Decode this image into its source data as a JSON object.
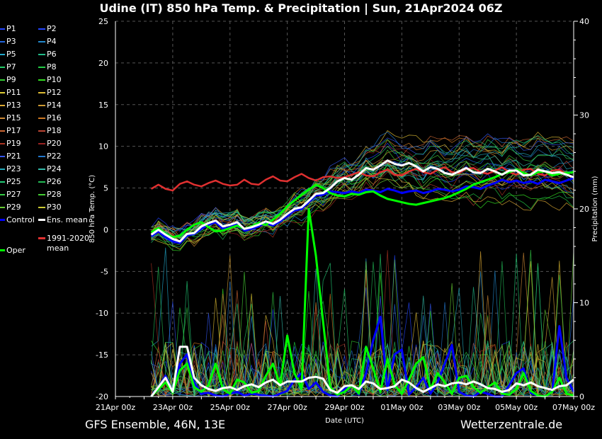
{
  "title": "Udine  (IT)  850 hPa Temp. & Precipitation | Sun, 21Apr2024 06Z",
  "footer_left": "GFS Ensemble, 46N, 13E",
  "footer_right": "Wetterzentrale.de",
  "colors": {
    "background": "#000000",
    "control": "#0000ff",
    "ens_mean": "#ffffff",
    "clim_mean": "#e03030",
    "oper": "#00ff00",
    "grid": "#555555"
  },
  "legend": {
    "members": [
      {
        "label": "P1",
        "color": "#2244ff"
      },
      {
        "label": "P2",
        "color": "#2244ff"
      },
      {
        "label": "P3",
        "color": "#2266dd"
      },
      {
        "label": "P4",
        "color": "#2288cc"
      },
      {
        "label": "P5",
        "color": "#22aacc"
      },
      {
        "label": "P6",
        "color": "#22bb88"
      },
      {
        "label": "P7",
        "color": "#22cc66"
      },
      {
        "label": "P8",
        "color": "#22cc44"
      },
      {
        "label": "P9",
        "color": "#33cc33"
      },
      {
        "label": "P10",
        "color": "#33dd22"
      },
      {
        "label": "P11",
        "color": "#ddcc33"
      },
      {
        "label": "P12",
        "color": "#ddbb33"
      },
      {
        "label": "P13",
        "color": "#ddaa33"
      },
      {
        "label": "P14",
        "color": "#cc9933"
      },
      {
        "label": "P15",
        "color": "#cc8833"
      },
      {
        "label": "P16",
        "color": "#cc7722"
      },
      {
        "label": "P17",
        "color": "#cc6633"
      },
      {
        "label": "P18",
        "color": "#bb4433"
      },
      {
        "label": "P19",
        "color": "#aa3322"
      },
      {
        "label": "P20",
        "color": "#992222"
      },
      {
        "label": "P21",
        "color": "#3355ee"
      },
      {
        "label": "P22",
        "color": "#2277cc"
      },
      {
        "label": "P23",
        "color": "#22aabb"
      },
      {
        "label": "P24",
        "color": "#33bbaa"
      },
      {
        "label": "P25",
        "color": "#22cc77"
      },
      {
        "label": "P26",
        "color": "#22bb55"
      },
      {
        "label": "P27",
        "color": "#33cc44"
      },
      {
        "label": "P28",
        "color": "#44cc33"
      },
      {
        "label": "P29",
        "color": "#66cc33"
      },
      {
        "label": "P30",
        "color": "#cccc33"
      }
    ],
    "control_label": "Control",
    "ens_mean_label": "Ens. mean",
    "clim_label_1": "1991-2020",
    "clim_label_2": "mean",
    "oper_label": "Oper"
  },
  "chart_data": {
    "type": "line",
    "title": "Udine  (IT)  850 hPa Temp. & Precipitation | Sun, 21Apr2024 06Z",
    "xlabel": "Date (UTC)",
    "ylabel": "850 hPa Temp. (°C)",
    "y2label": "Precipitation (mm)",
    "ylim": [
      -20,
      25
    ],
    "y2lim": [
      0,
      40
    ],
    "yticks": [
      25,
      20,
      15,
      10,
      5,
      0,
      -5,
      -10,
      -15,
      -20
    ],
    "y2ticks": [
      40,
      30,
      20,
      10,
      0
    ],
    "xlim_days": [
      0,
      16
    ],
    "xticks": [
      {
        "day": 0,
        "label": "21Apr 00z"
      },
      {
        "day": 2,
        "label": "23Apr 00z"
      },
      {
        "day": 4,
        "label": "25Apr 00z"
      },
      {
        "day": 6,
        "label": "27Apr 00z"
      },
      {
        "day": 8,
        "label": "29Apr 00z"
      },
      {
        "day": 10,
        "label": "01May 00z"
      },
      {
        "day": 12,
        "label": "03May 00z"
      },
      {
        "day": 14,
        "label": "05May 00z"
      },
      {
        "day": 16,
        "label": "07May 00z"
      }
    ],
    "series": [
      {
        "name": "1991-2020 mean",
        "unit": "°C",
        "x": [
          1.25,
          1.5,
          1.75,
          2.0,
          2.25,
          2.5,
          2.75,
          3.0,
          3.25,
          3.5,
          3.75,
          4.0,
          4.25,
          4.5,
          4.75,
          5.0,
          5.25,
          5.5,
          5.75,
          6.0,
          6.25,
          6.5,
          6.75,
          7.0,
          7.25,
          7.5,
          7.75,
          8.0,
          8.25,
          8.5,
          8.75,
          9.0,
          9.25,
          9.5,
          9.75,
          10.0,
          10.25,
          10.5,
          10.75,
          11.0,
          11.25,
          11.5,
          11.75,
          12.0,
          12.25,
          12.5,
          12.75,
          13.0,
          13.25,
          13.5,
          13.75,
          14.0,
          14.25,
          14.5,
          14.75,
          15.0,
          15.25,
          15.5,
          15.75,
          16.0
        ],
        "values": [
          4.9,
          5.4,
          4.9,
          4.7,
          5.5,
          5.8,
          5.4,
          5.2,
          5.6,
          5.9,
          5.5,
          5.3,
          5.4,
          6.0,
          5.5,
          5.4,
          6.0,
          6.4,
          5.9,
          5.8,
          6.3,
          6.7,
          6.2,
          5.9,
          6.3,
          6.4,
          6.2,
          6.3,
          6.6,
          6.9,
          6.5,
          6.4,
          6.9,
          7.2,
          6.6,
          6.5,
          7.0,
          7.3,
          6.9,
          6.7,
          7.2,
          7.5,
          6.9,
          6.8,
          7.3,
          7.4,
          6.9,
          6.7,
          7.1,
          7.5,
          6.9,
          6.6,
          7.2,
          7.3,
          6.7,
          6.5,
          7.1,
          7.2,
          6.6,
          6.3
        ]
      },
      {
        "name": "Ens. mean",
        "unit": "°C",
        "x": [
          1.25,
          1.5,
          1.75,
          2.0,
          2.25,
          2.5,
          2.75,
          3.0,
          3.25,
          3.5,
          3.75,
          4.0,
          4.25,
          4.5,
          4.75,
          5.0,
          5.25,
          5.5,
          5.75,
          6.0,
          6.25,
          6.5,
          6.75,
          7.0,
          7.25,
          7.5,
          7.75,
          8.0,
          8.25,
          8.5,
          8.75,
          9.0,
          9.25,
          9.5,
          9.75,
          10.0,
          10.25,
          10.5,
          10.75,
          11.0,
          11.25,
          11.5,
          11.75,
          12.0,
          12.25,
          12.5,
          12.75,
          13.0,
          13.25,
          13.5,
          13.75,
          14.0,
          14.25,
          14.5,
          14.75,
          15.0,
          15.25,
          15.5,
          15.75,
          16.0
        ],
        "values": [
          -0.6,
          0.0,
          -0.6,
          -1.1,
          -1.4,
          -0.5,
          -0.4,
          0.4,
          0.8,
          1.1,
          0.4,
          0.6,
          0.9,
          0.1,
          0.3,
          0.6,
          1.0,
          0.7,
          1.2,
          1.9,
          2.5,
          2.7,
          3.5,
          4.3,
          4.4,
          5.0,
          5.8,
          6.2,
          6.0,
          6.6,
          7.4,
          7.2,
          7.7,
          8.3,
          7.9,
          7.7,
          8.0,
          7.6,
          7.0,
          7.5,
          7.3,
          6.8,
          6.6,
          7.0,
          7.4,
          6.9,
          6.8,
          7.3,
          7.0,
          6.6,
          7.1,
          7.1,
          6.5,
          6.6,
          7.2,
          7.0,
          6.8,
          6.9,
          6.6,
          6.3
        ]
      },
      {
        "name": "Control",
        "unit": "°C",
        "x": [
          1.25,
          1.5,
          1.75,
          2.0,
          2.25,
          2.5,
          2.75,
          3.0,
          3.25,
          3.5,
          3.75,
          4.0,
          4.25,
          4.5,
          4.75,
          5.0,
          5.25,
          5.5,
          5.75,
          6.0,
          6.25,
          6.5,
          6.75,
          7.0,
          7.25,
          7.5,
          7.75,
          8.0,
          8.25,
          8.5,
          8.75,
          9.0,
          9.25,
          9.5,
          9.75,
          10.0,
          10.25,
          10.5,
          10.75,
          11.0,
          11.25,
          11.5,
          11.75,
          12.0,
          12.25,
          12.5,
          12.75,
          13.0,
          13.25,
          13.5,
          13.75,
          14.0,
          14.25,
          14.5,
          14.75,
          15.0,
          15.25,
          15.5,
          15.75,
          16.0
        ],
        "values": [
          -0.8,
          -0.2,
          -0.9,
          -1.4,
          -1.6,
          -0.7,
          -0.5,
          0.1,
          0.6,
          0.9,
          0.1,
          0.3,
          0.7,
          -0.1,
          0.1,
          0.4,
          0.8,
          0.5,
          1.0,
          1.7,
          2.3,
          2.5,
          3.3,
          4.1,
          4.2,
          4.6,
          4.5,
          4.4,
          4.6,
          4.4,
          4.8,
          4.7,
          4.5,
          4.9,
          4.7,
          4.4,
          4.6,
          4.7,
          4.4,
          4.6,
          4.9,
          4.8,
          4.6,
          4.8,
          5.2,
          5.1,
          4.9,
          5.3,
          5.6,
          6.0,
          5.7,
          5.9,
          5.6,
          5.8,
          5.5,
          6.0,
          5.8,
          5.6,
          5.9,
          6.2
        ]
      },
      {
        "name": "Oper",
        "unit": "°C",
        "x": [
          1.25,
          1.5,
          1.75,
          2.0,
          2.25,
          2.5,
          2.75,
          3.0,
          3.25,
          3.5,
          3.75,
          4.0,
          4.25,
          4.5,
          4.75,
          5.0,
          5.25,
          5.5,
          5.75,
          6.0,
          6.25,
          6.5,
          6.75,
          7.0,
          7.25,
          7.5,
          7.75,
          8.0,
          8.25,
          8.5,
          8.75,
          9.0,
          9.25,
          9.5,
          9.75,
          10.0,
          10.25,
          10.5,
          10.75,
          11.0,
          11.25,
          11.5,
          11.75,
          12.0,
          12.25,
          12.5,
          12.75,
          13.0,
          13.25,
          13.5,
          13.75,
          14.0,
          14.25,
          14.5,
          14.75,
          15.0,
          15.25,
          15.5,
          15.75,
          16.0
        ],
        "values": [
          -0.3,
          0.2,
          -0.5,
          -0.9,
          -0.7,
          0.0,
          0.6,
          0.9,
          0.3,
          -0.2,
          -0.1,
          0.2,
          0.5,
          0.1,
          0.4,
          0.8,
          0.6,
          1.2,
          1.9,
          2.8,
          3.5,
          4.2,
          4.8,
          5.4,
          5.0,
          4.4,
          4.1,
          4.0,
          4.3,
          4.2,
          4.5,
          4.6,
          4.1,
          3.7,
          3.5,
          3.3,
          3.1,
          3.0,
          3.2,
          3.4,
          3.6,
          3.8,
          4.1,
          4.5,
          4.9,
          5.4,
          5.7,
          6.0,
          6.3,
          6.7,
          6.9,
          7.2,
          6.8,
          6.5,
          6.9,
          7.0,
          6.5,
          6.7,
          6.8,
          6.9
        ]
      },
      {
        "name": "Control precip",
        "unit": "mm",
        "x": [
          1.25,
          1.5,
          1.75,
          2.0,
          2.25,
          2.5,
          2.75,
          3.0,
          3.25,
          3.5,
          3.75,
          4.0,
          4.25,
          4.5,
          4.75,
          5.0,
          5.25,
          5.5,
          5.75,
          6.0,
          6.25,
          6.5,
          6.75,
          7.0,
          7.25,
          7.5,
          7.75,
          8.0,
          8.25,
          8.5,
          8.75,
          9.0,
          9.25,
          9.5,
          9.75,
          10.0,
          10.25,
          10.5,
          10.75,
          11.0,
          11.25,
          11.5,
          11.75,
          12.0,
          12.25,
          12.5,
          12.75,
          13.0,
          13.25,
          13.5,
          13.75,
          14.0,
          14.25,
          14.5,
          14.75,
          15.0,
          15.25,
          15.5,
          15.75,
          16.0
        ],
        "values": [
          0.0,
          1.0,
          2.2,
          0.5,
          3.5,
          4.5,
          1.5,
          0.3,
          0.4,
          0.1,
          0.0,
          0.3,
          0.5,
          0.1,
          0.3,
          0.2,
          0.1,
          0.0,
          0.3,
          0.6,
          1.8,
          2.5,
          0.8,
          1.5,
          0.5,
          0.1,
          0.0,
          0.8,
          1.2,
          0.2,
          2.5,
          6.0,
          8.5,
          0.7,
          4.5,
          5.0,
          0.2,
          1.0,
          2.0,
          0.3,
          1.5,
          3.5,
          5.5,
          0.5,
          0.1,
          0.0,
          0.5,
          0.3,
          0.0,
          0.0,
          1.2,
          2.5,
          3.0,
          0.4,
          0.1,
          0.0,
          0.5,
          7.5,
          2.0,
          0.5
        ]
      },
      {
        "name": "Oper precip",
        "unit": "mm",
        "x": [
          1.25,
          1.5,
          1.75,
          2.0,
          2.25,
          2.5,
          2.75,
          3.0,
          3.25,
          3.5,
          3.75,
          4.0,
          4.25,
          4.5,
          4.75,
          5.0,
          5.25,
          5.5,
          5.75,
          6.0,
          6.25,
          6.5,
          6.75,
          7.0,
          7.25,
          7.5,
          7.75,
          8.0,
          8.25,
          8.5,
          8.75,
          9.0,
          9.25,
          9.5,
          9.75,
          10.0,
          10.25,
          10.5,
          10.75,
          11.0,
          11.25,
          11.5,
          11.75,
          12.0,
          12.25,
          12.5,
          12.75,
          13.0,
          13.25,
          13.5,
          13.75,
          14.0,
          14.25,
          14.5,
          14.75,
          15.0,
          15.25,
          15.5,
          15.75,
          16.0
        ],
        "values": [
          0.0,
          0.8,
          1.5,
          0.4,
          2.8,
          3.5,
          1.0,
          0.5,
          1.2,
          3.5,
          0.8,
          0.3,
          1.8,
          1.5,
          0.4,
          0.6,
          2.2,
          3.5,
          1.2,
          6.5,
          2.5,
          0.8,
          20.0,
          15.0,
          8.0,
          1.0,
          0.2,
          0.5,
          1.2,
          0.3,
          5.3,
          3.0,
          0.5,
          4.0,
          1.2,
          0.3,
          1.8,
          3.5,
          4.2,
          0.8,
          2.5,
          1.5,
          0.3,
          2.0,
          2.2,
          1.0,
          0.4,
          1.0,
          1.5,
          0.3,
          0.2,
          0.8,
          2.5,
          0.6,
          0.1,
          0.0,
          0.5,
          2.0,
          0.3,
          0.1
        ]
      },
      {
        "name": "Ens. mean precip",
        "unit": "mm",
        "x": [
          1.25,
          1.5,
          1.75,
          2.0,
          2.25,
          2.5,
          2.75,
          3.0,
          3.25,
          3.5,
          3.75,
          4.0,
          4.25,
          4.5,
          4.75,
          5.0,
          5.25,
          5.5,
          5.75,
          6.0,
          6.25,
          6.5,
          6.75,
          7.0,
          7.25,
          7.5,
          7.75,
          8.0,
          8.25,
          8.5,
          8.75,
          9.0,
          9.25,
          9.5,
          9.75,
          10.0,
          10.25,
          10.5,
          10.75,
          11.0,
          11.25,
          11.5,
          11.75,
          12.0,
          12.25,
          12.5,
          12.75,
          13.0,
          13.25,
          13.5,
          13.75,
          14.0,
          14.25,
          14.5,
          14.75,
          15.0,
          15.25,
          15.5,
          15.75,
          16.0
        ],
        "values": [
          0.0,
          1.0,
          2.0,
          0.5,
          5.3,
          5.3,
          2.0,
          1.2,
          0.8,
          0.6,
          0.9,
          1.0,
          0.7,
          1.1,
          1.3,
          1.0,
          1.5,
          1.8,
          1.2,
          1.6,
          1.6,
          1.6,
          2.0,
          2.1,
          1.9,
          0.7,
          0.4,
          1.1,
          1.2,
          0.8,
          1.6,
          1.4,
          0.8,
          0.9,
          1.1,
          1.8,
          1.5,
          0.9,
          0.5,
          0.9,
          1.3,
          1.1,
          1.4,
          1.5,
          1.3,
          1.6,
          1.3,
          0.9,
          0.8,
          0.5,
          0.7,
          1.4,
          1.2,
          1.5,
          1.1,
          0.9,
          0.7,
          1.1,
          1.2,
          1.8
        ]
      }
    ],
    "note": "Plus 30 thin perturbation members (P1-P30) for temperature and precipitation"
  }
}
